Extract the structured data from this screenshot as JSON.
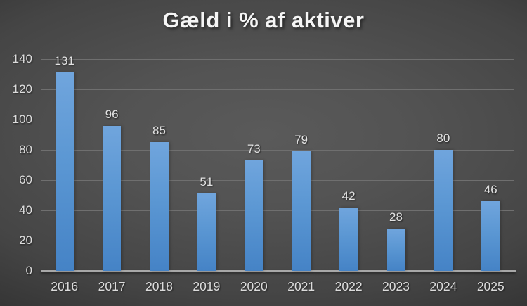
{
  "title": "Gæld i % af aktiver",
  "colors": {
    "background_center": "#595959",
    "background_edge": "#262626",
    "bar_gradient_top": "#70a5dd",
    "bar_gradient_bottom": "#4583c6",
    "gridline": "#6f6f6f",
    "axis_line": "#a8a8a8",
    "tick_label": "#dcdcdc",
    "value_label": "#e2e2e2",
    "title_color": "#f5f5f5"
  },
  "chart_data": {
    "type": "bar",
    "title": "Gæld i % af aktiver",
    "categories": [
      "2016",
      "2017",
      "2018",
      "2019",
      "2020",
      "2021",
      "2022",
      "2023",
      "2024",
      "2025"
    ],
    "values": [
      131,
      96,
      85,
      51,
      73,
      79,
      42,
      28,
      80,
      46
    ],
    "xlabel": "",
    "ylabel": "",
    "ylim": [
      0,
      140
    ],
    "y_ticks": [
      140,
      120,
      100,
      80,
      60,
      40,
      20,
      0
    ],
    "grid": true,
    "legend_position": "none",
    "data_labels": true
  }
}
